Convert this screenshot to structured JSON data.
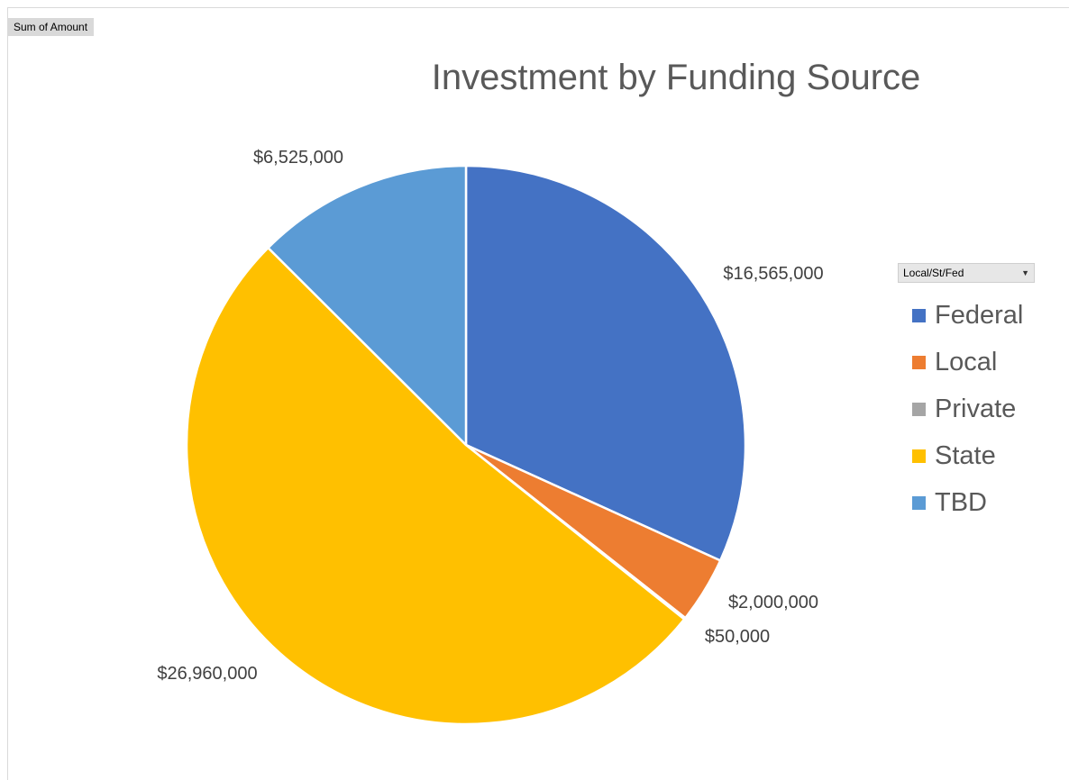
{
  "field_button": {
    "label": "Sum of Amount"
  },
  "legend_filter": {
    "label": "Local/St/Fed",
    "arrow_icon": "dropdown-arrow-icon"
  },
  "chart_data": {
    "type": "pie",
    "title": "Investment by Funding Source",
    "categories": [
      "Federal",
      "Local",
      "Private",
      "State",
      "TBD"
    ],
    "values": [
      16565000,
      2000000,
      50000,
      26960000,
      6525000
    ],
    "data_labels": [
      "$16,565,000",
      "$2,000,000",
      "$50,000",
      "$26,960,000",
      "$6,525,000"
    ],
    "colors": [
      "#4472c4",
      "#ed7d31",
      "#a5a5a5",
      "#ffc000",
      "#5b9bd5"
    ],
    "legend_position": "right"
  }
}
